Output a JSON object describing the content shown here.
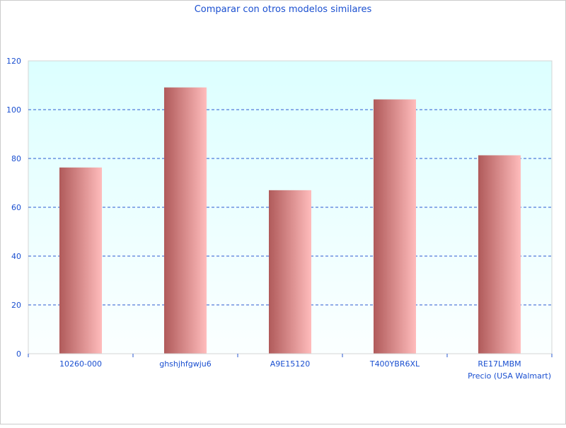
{
  "chart_data": {
    "type": "bar",
    "title": "Comparar con otros modelos similares",
    "xlabel": "Precio (USA Walmart)",
    "ylabel": "",
    "categories": [
      "10260-000",
      "ghshjhfgwju6",
      "A9E15120",
      "T400YBR6XL",
      "RE17LMBM"
    ],
    "values": [
      76.3,
      109.1,
      67,
      104.2,
      81.3
    ],
    "ylim": [
      0,
      120
    ],
    "yticks": [
      0,
      20,
      40,
      60,
      80,
      100,
      120
    ],
    "grid": true,
    "legend": "none",
    "colors": {
      "bar_dark": "#b05a5a",
      "bar_light": "#ffbcbc",
      "text": "#1a4fd0",
      "grid": "#2a5ad0",
      "bg_top": "#dcffff",
      "bg_bottom": "#fbffff"
    }
  }
}
